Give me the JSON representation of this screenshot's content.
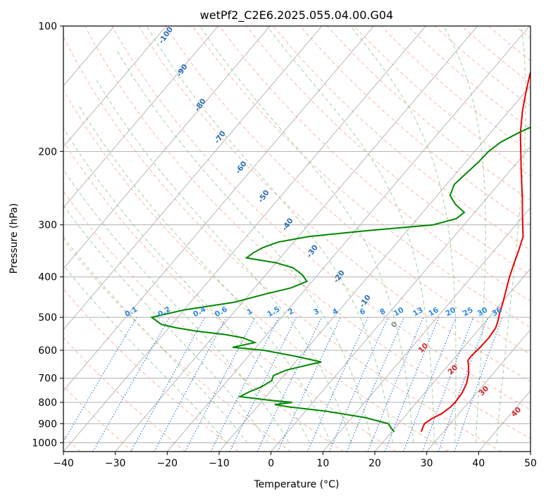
{
  "chart_data": {
    "type": "line",
    "subtype": "skew-t log-p sounding",
    "title": "wetPf2_C2E6.2025.055.04.00.G04",
    "xlabel": "Temperature (°C)",
    "ylabel": "Pressure (hPa)",
    "xlim": [
      -40,
      50
    ],
    "ylim": [
      1050,
      100
    ],
    "y_scale": "log",
    "grid": true,
    "x_ticks": [
      "−40",
      "−30",
      "−20",
      "−10",
      "0",
      "10",
      "20",
      "30",
      "40",
      "50"
    ],
    "y_ticks": [
      {
        "p": 100,
        "label": "100"
      },
      {
        "p": 200,
        "label": "200"
      },
      {
        "p": 300,
        "label": "300"
      },
      {
        "p": 400,
        "label": "400"
      },
      {
        "p": 500,
        "label": "500"
      },
      {
        "p": 600,
        "label": "600"
      },
      {
        "p": 700,
        "label": "700"
      },
      {
        "p": 800,
        "label": "800"
      },
      {
        "p": 900,
        "label": "900"
      },
      {
        "p": 1000,
        "label": "1000"
      }
    ],
    "series": [
      {
        "color": "#ee0000",
        "points": [
          [
            941,
            25.7
          ],
          [
            925,
            25.4
          ],
          [
            900,
            25.0
          ],
          [
            875,
            25.6
          ],
          [
            850,
            26.7
          ],
          [
            820,
            27.3
          ],
          [
            800,
            27.4
          ],
          [
            760,
            27.2
          ],
          [
            720,
            26.5
          ],
          [
            680,
            25.2
          ],
          [
            650,
            23.8
          ],
          [
            635,
            23.0
          ],
          [
            620,
            22.9
          ],
          [
            590,
            23.2
          ],
          [
            560,
            23.3
          ],
          [
            530,
            23.0
          ],
          [
            510,
            22.3
          ],
          [
            490,
            21.4
          ],
          [
            460,
            20.2
          ],
          [
            430,
            18.8
          ],
          [
            400,
            17.3
          ],
          [
            370,
            15.9
          ],
          [
            345,
            14.7
          ],
          [
            320,
            13.3
          ],
          [
            300,
            11.3
          ],
          [
            280,
            9.2
          ],
          [
            260,
            7.0
          ],
          [
            240,
            4.5
          ],
          [
            220,
            1.8
          ],
          [
            200,
            -1.1
          ],
          [
            180,
            -4.3
          ],
          [
            160,
            -7.4
          ],
          [
            145,
            -9.7
          ],
          [
            130,
            -12.1
          ],
          [
            118,
            -13.5
          ],
          [
            108,
            -15.0
          ],
          [
            100,
            -16.4
          ]
        ]
      },
      {
        "color": "#008800",
        "points": [
          [
            941,
            20.5
          ],
          [
            925,
            19.5
          ],
          [
            900,
            18.0
          ],
          [
            870,
            12.5
          ],
          [
            840,
            4.0
          ],
          [
            820,
            -4.0
          ],
          [
            810,
            -7.0
          ],
          [
            800,
            -4.0
          ],
          [
            790,
            -9.0
          ],
          [
            775,
            -15.0
          ],
          [
            755,
            -14.0
          ],
          [
            735,
            -12.5
          ],
          [
            710,
            -11.5
          ],
          [
            690,
            -12.0
          ],
          [
            670,
            -10.5
          ],
          [
            650,
            -7.0
          ],
          [
            640,
            -5.0
          ],
          [
            620,
            -11.0
          ],
          [
            600,
            -18.0
          ],
          [
            590,
            -24.5
          ],
          [
            575,
            -21.0
          ],
          [
            560,
            -24.0
          ],
          [
            550,
            -28.0
          ],
          [
            540,
            -34.0
          ],
          [
            530,
            -38.5
          ],
          [
            520,
            -42.0
          ],
          [
            500,
            -45.0
          ],
          [
            480,
            -40.0
          ],
          [
            460,
            -31.5
          ],
          [
            440,
            -27.0
          ],
          [
            425,
            -23.0
          ],
          [
            410,
            -21.0
          ],
          [
            395,
            -23.0
          ],
          [
            380,
            -26.0
          ],
          [
            370,
            -30.0
          ],
          [
            360,
            -36.5
          ],
          [
            350,
            -36.0
          ],
          [
            340,
            -35.0
          ],
          [
            330,
            -33.0
          ],
          [
            320,
            -28.0
          ],
          [
            310,
            -18.0
          ],
          [
            300,
            -6.0
          ],
          [
            290,
            -2.5
          ],
          [
            280,
            -2.0
          ],
          [
            268,
            -5.0
          ],
          [
            255,
            -7.5
          ],
          [
            240,
            -8.5
          ],
          [
            225,
            -8.0
          ],
          [
            212,
            -7.5
          ],
          [
            200,
            -7.3
          ],
          [
            190,
            -6.5
          ],
          [
            180,
            -4.5
          ],
          [
            170,
            -1.8
          ],
          [
            160,
            0.0
          ],
          [
            150,
            -1.0
          ],
          [
            140,
            -3.5
          ],
          [
            132,
            -6.0
          ],
          [
            125,
            -5.0
          ],
          [
            118,
            -3.0
          ],
          [
            110,
            -2.5
          ],
          [
            104,
            -2.8
          ],
          [
            100,
            -3.2
          ]
        ]
      }
    ],
    "mixing_ratio_labels": [
      "0.1",
      "0.2",
      "0.4",
      "0.6",
      "1",
      "1.5",
      "2",
      "3",
      "4",
      "6",
      "8",
      "10",
      "13",
      "16",
      "20",
      "25",
      "30",
      "36"
    ],
    "moist_adiabat_labels": [
      "-100",
      "-90",
      "-80",
      "-70",
      "-60",
      "-50",
      "-40",
      "-30",
      "-20",
      "-10"
    ],
    "dry_adiabat_labels": [
      "0",
      "10",
      "20",
      "30",
      "40"
    ],
    "colors": {
      "temperature": "#ee0000",
      "dewpoint": "#008800",
      "isotherm": "#b0b0b0",
      "dry_adiabat": "#f7a58e",
      "moist_adiabat": "#8ec98e",
      "mixing_ratio": "#1f77d4",
      "moist_label": "#2a6db0",
      "mixing_label": "#2e8be0",
      "dry_label": "#d62728"
    }
  }
}
